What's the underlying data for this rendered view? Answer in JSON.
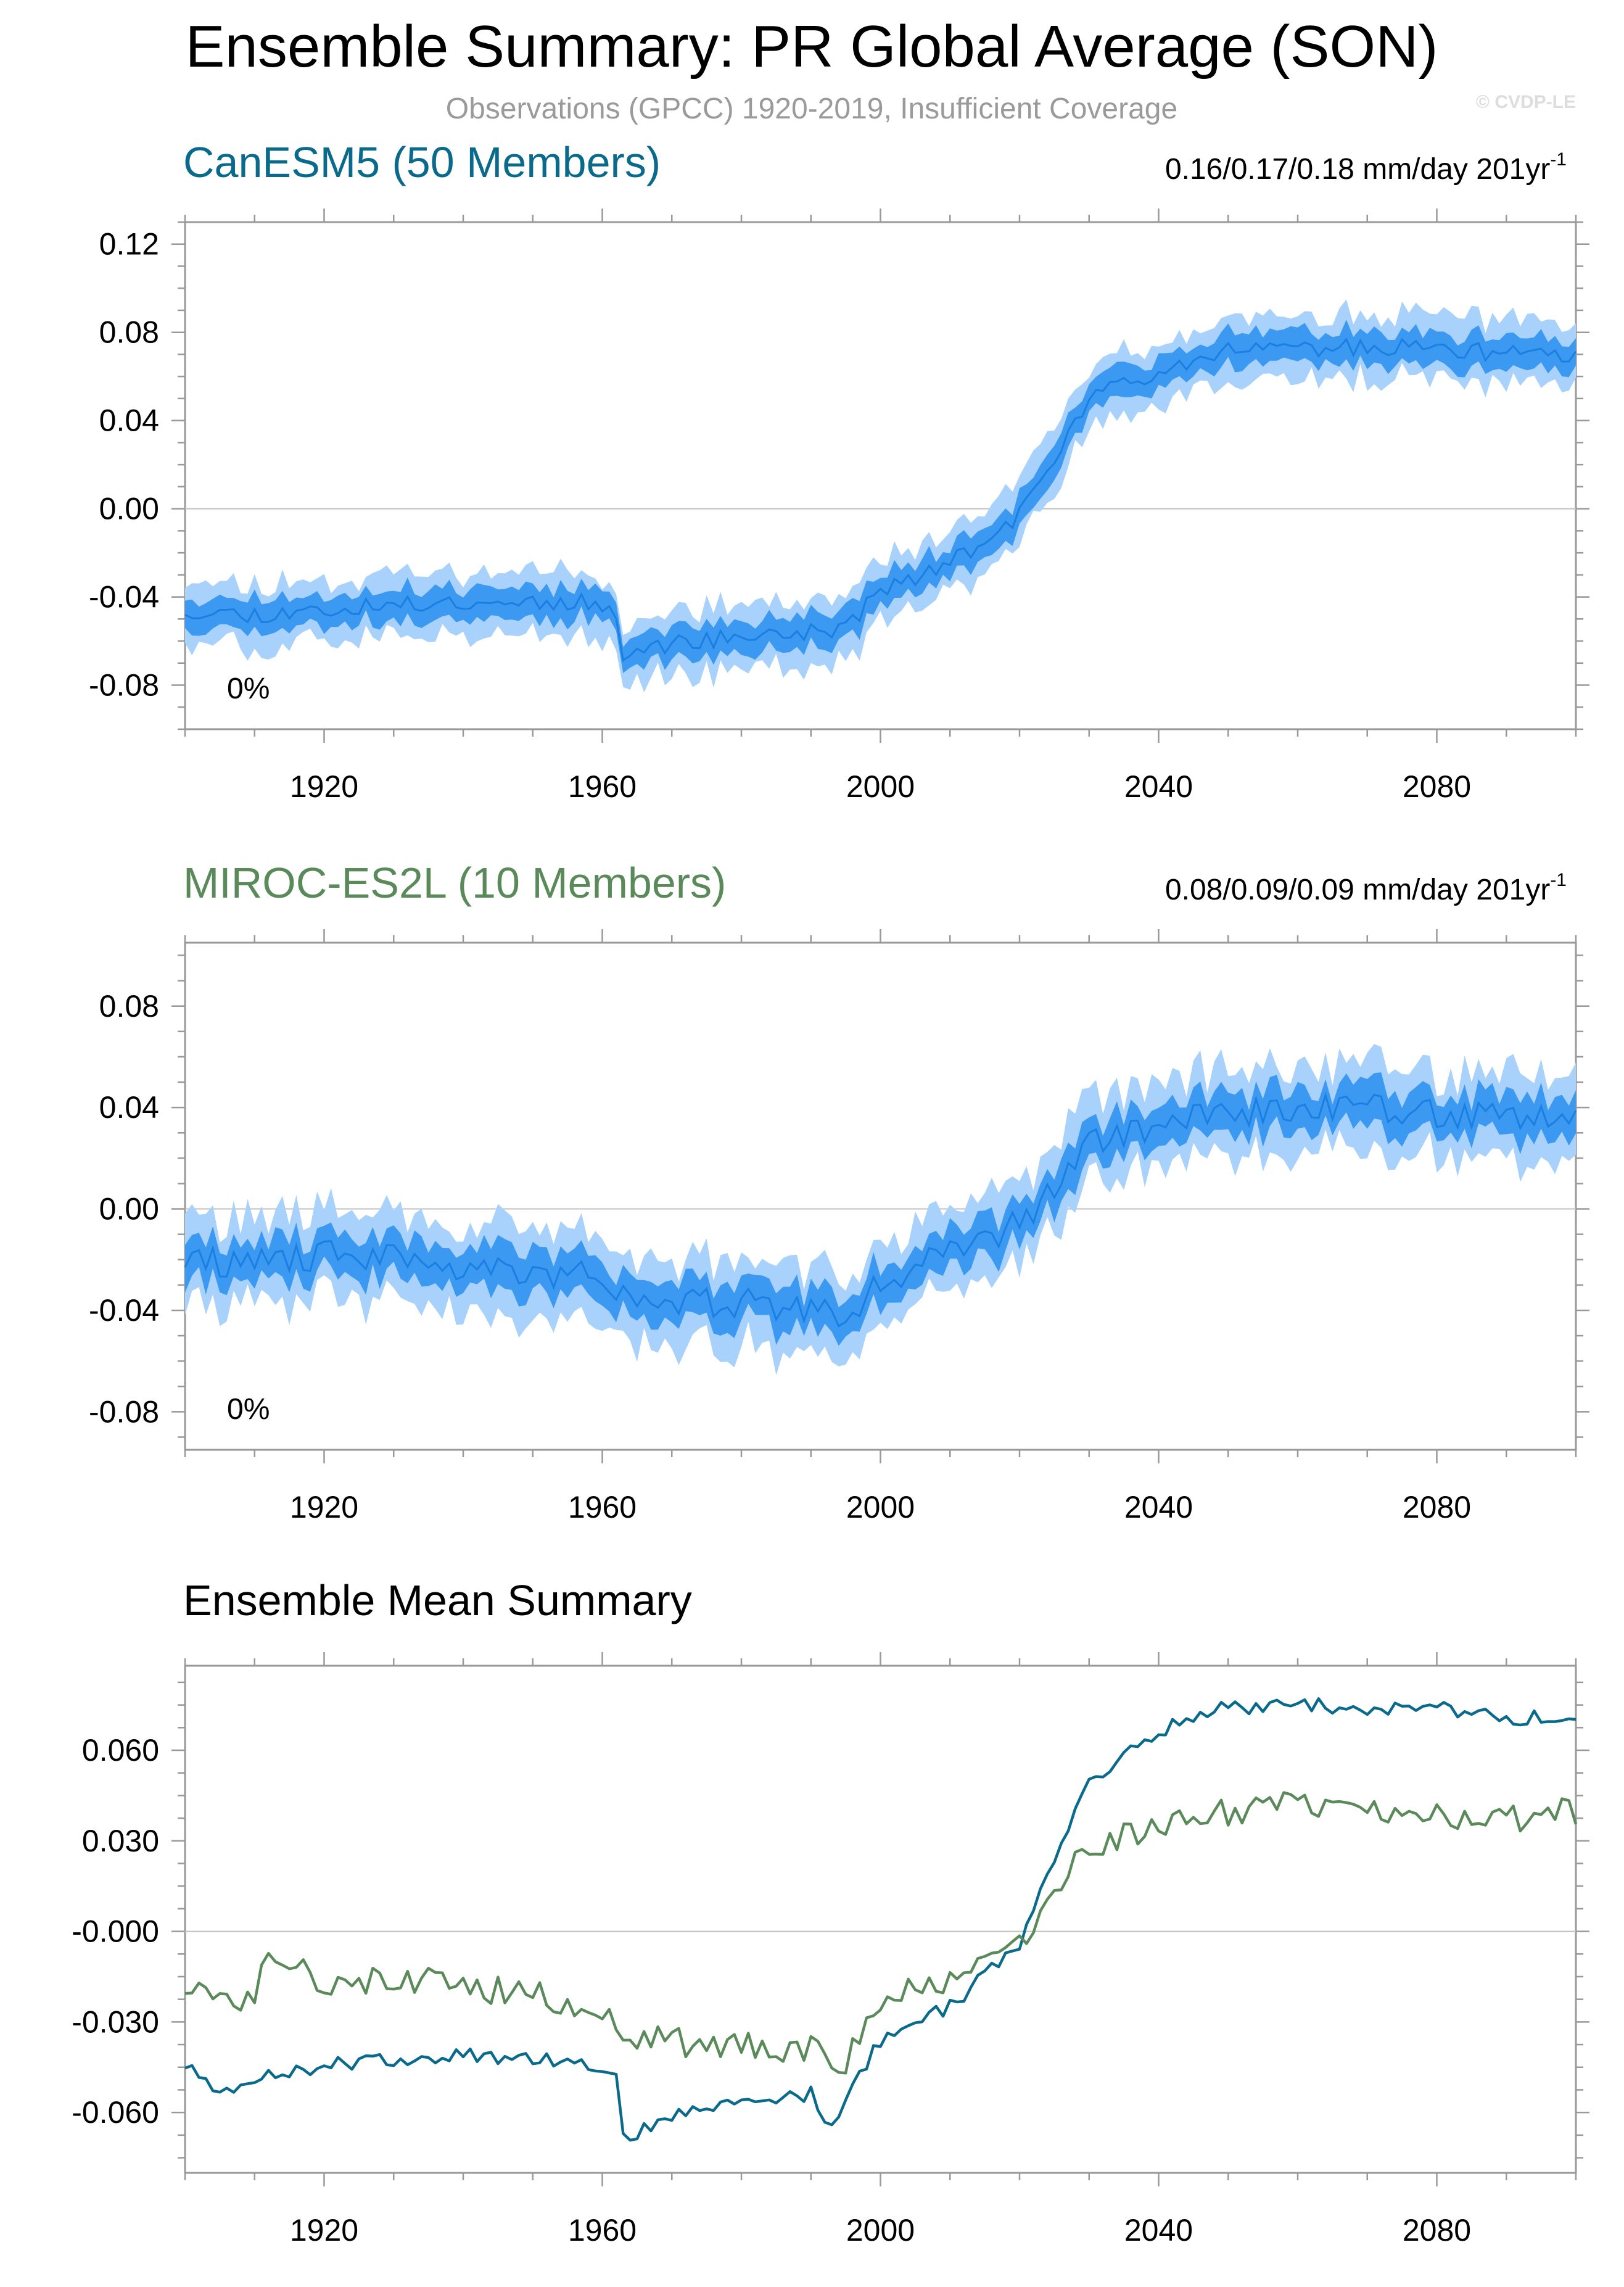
{
  "header": {
    "title": "Ensemble Summary: PR Global Average (SON)",
    "subtitle": "Observations (GPCC) 1920-2019, Insufficient Coverage",
    "watermark": "© CVDP-LE"
  },
  "colors": {
    "canesm5": "#0a6a8c",
    "miroc": "#5a8a5a",
    "band_outer": "#a8d2fb",
    "band_inner": "#3c99f2",
    "mean_line": "#1a7fe0",
    "axis": "#999999",
    "zero_line": "#bfbfbf"
  },
  "chart_data": [
    {
      "type": "area",
      "name": "CanESM5 (50 Members)",
      "title": "CanESM5 (50 Members)",
      "trend_label": "0.16/0.17/0.18 mm/day 201yr",
      "trend_exponent": "-1",
      "annotation": "0%",
      "x_range": [
        1900,
        2100
      ],
      "ylim": [
        -0.1,
        0.13
      ],
      "yticks": [
        "0.12",
        "0.08",
        "0.04",
        "0.00",
        "-0.04",
        "-0.08"
      ],
      "ytick_values": [
        0.12,
        0.08,
        0.04,
        0.0,
        -0.04,
        -0.08
      ],
      "xticks": [
        "1920",
        "1960",
        "2000",
        "2040",
        "2080"
      ],
      "xtick_values": [
        1920,
        1960,
        2000,
        2040,
        2080
      ],
      "x": [
        1900,
        1910,
        1920,
        1930,
        1940,
        1950,
        1960,
        1962,
        1963,
        1970,
        1980,
        1990,
        1995,
        2000,
        2010,
        2020,
        2025,
        2030,
        2040,
        2050,
        2060,
        2070,
        2080,
        2090,
        2100
      ],
      "mean": [
        -0.046,
        -0.048,
        -0.046,
        -0.044,
        -0.042,
        -0.042,
        -0.043,
        -0.046,
        -0.066,
        -0.061,
        -0.058,
        -0.056,
        -0.054,
        -0.037,
        -0.025,
        -0.003,
        0.022,
        0.05,
        0.063,
        0.073,
        0.073,
        0.073,
        0.073,
        0.07,
        0.069
      ],
      "inner_half_width": 0.007,
      "outer_half_width": 0.014,
      "wiggle_amplitude": 0.004,
      "seed": 11
    },
    {
      "type": "area",
      "name": "MIROC-ES2L (10 Members)",
      "title": "MIROC-ES2L (10 Members)",
      "trend_label": "0.08/0.09/0.09 mm/day 201yr",
      "trend_exponent": "-1",
      "annotation": "0%",
      "x_range": [
        1900,
        2100
      ],
      "ylim": [
        -0.095,
        0.105
      ],
      "yticks": [
        "0.08",
        "0.04",
        "0.00",
        "-0.04",
        "-0.08"
      ],
      "ytick_values": [
        0.08,
        0.04,
        0.0,
        -0.04,
        -0.08
      ],
      "xticks": [
        "1920",
        "1960",
        "2000",
        "2040",
        "2080"
      ],
      "xtick_values": [
        1920,
        1960,
        2000,
        2040,
        2080
      ],
      "x": [
        1900,
        1910,
        1920,
        1930,
        1940,
        1950,
        1960,
        1963,
        1970,
        1980,
        1990,
        1995,
        2000,
        2010,
        2020,
        2025,
        2030,
        2040,
        2050,
        2060,
        2070,
        2080,
        2090,
        2100
      ],
      "mean": [
        -0.02,
        -0.022,
        -0.018,
        -0.02,
        -0.022,
        -0.025,
        -0.026,
        -0.035,
        -0.037,
        -0.037,
        -0.04,
        -0.042,
        -0.028,
        -0.018,
        -0.006,
        0.01,
        0.025,
        0.033,
        0.038,
        0.04,
        0.04,
        0.038,
        0.036,
        0.038
      ],
      "inner_half_width": 0.008,
      "outer_half_width": 0.017,
      "wiggle_amplitude": 0.006,
      "seed": 29
    },
    {
      "type": "line",
      "title": "Ensemble Mean Summary",
      "x_range": [
        1900,
        2100
      ],
      "ylim": [
        -0.08,
        0.088
      ],
      "yticks": [
        "0.060",
        "0.030",
        "-0.000",
        "-0.030",
        "-0.060"
      ],
      "ytick_values": [
        0.06,
        0.03,
        0.0,
        -0.03,
        -0.06
      ],
      "xticks": [
        "1920",
        "1960",
        "2000",
        "2040",
        "2080"
      ],
      "xtick_values": [
        1920,
        1960,
        2000,
        2040,
        2080
      ],
      "series": [
        {
          "name": "CanESM5",
          "color_key": "canesm5",
          "x": [
            1900,
            1905,
            1910,
            1920,
            1930,
            1940,
            1950,
            1960,
            1962,
            1963,
            1970,
            1980,
            1990,
            1993,
            1995,
            2000,
            2010,
            2020,
            2025,
            2030,
            2035,
            2040,
            2045,
            2050,
            2060,
            2070,
            2080,
            2090,
            2100
          ],
          "values": [
            -0.044,
            -0.055,
            -0.049,
            -0.044,
            -0.043,
            -0.041,
            -0.042,
            -0.044,
            -0.048,
            -0.069,
            -0.061,
            -0.057,
            -0.054,
            -0.066,
            -0.055,
            -0.036,
            -0.025,
            -0.004,
            0.025,
            0.05,
            0.058,
            0.066,
            0.071,
            0.074,
            0.075,
            0.074,
            0.074,
            0.071,
            0.07
          ],
          "wiggle_amplitude": 0.0025,
          "seed": 5
        },
        {
          "name": "MIROC-ES2L",
          "color_key": "miroc",
          "x": [
            1900,
            1910,
            1912,
            1920,
            1930,
            1940,
            1950,
            1960,
            1963,
            1970,
            1980,
            1990,
            1995,
            2000,
            2010,
            2020,
            2025,
            2030,
            2040,
            2050,
            2060,
            2070,
            2080,
            2090,
            2100
          ],
          "values": [
            -0.018,
            -0.022,
            -0.004,
            -0.017,
            -0.015,
            -0.018,
            -0.021,
            -0.025,
            -0.035,
            -0.037,
            -0.037,
            -0.039,
            -0.045,
            -0.022,
            -0.018,
            -0.004,
            0.013,
            0.028,
            0.034,
            0.04,
            0.043,
            0.041,
            0.039,
            0.037,
            0.04
          ],
          "wiggle_amplitude": 0.005,
          "seed": 17
        }
      ]
    }
  ]
}
